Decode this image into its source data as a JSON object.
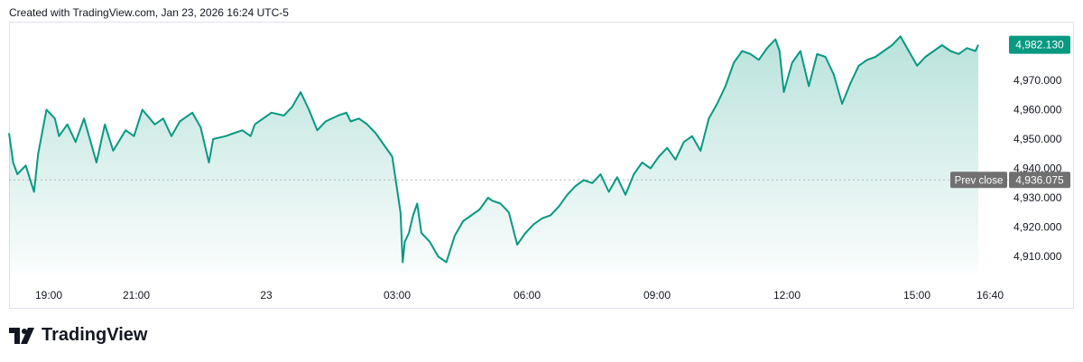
{
  "header": {
    "credit": "Created with TradingView.com, Jan 23, 2026 16:24 UTC-5"
  },
  "brand": {
    "name": "TradingView"
  },
  "chart_data": {
    "type": "area",
    "x_ticks": [
      "19:00",
      "21:00",
      "23",
      "03:00",
      "06:00",
      "09:00",
      "12:00",
      "15:00",
      "16:40"
    ],
    "y_ticks": [
      "4,970.000",
      "4,960.000",
      "4,950.000",
      "4,940.000",
      "4,930.000",
      "4,920.000",
      "4,910.000"
    ],
    "ylim": [
      4903,
      4987
    ],
    "prev_close": {
      "label": "Prev close",
      "value": 4936.075,
      "value_text": "4,936.075"
    },
    "last_price": {
      "value": 4982.13,
      "value_text": "4,982.130"
    },
    "colors": {
      "line": "#089981",
      "fill": "#089981",
      "prev_close_badge": "#707070",
      "last_badge": "#089981",
      "prev_close_line": "#b2b5be"
    },
    "series": [
      {
        "x": [
          17.4,
          17.5,
          17.6,
          17.8,
          18.0,
          18.1,
          18.3,
          18.5,
          18.6,
          18.8,
          19.0,
          19.2,
          19.5,
          19.7,
          19.9,
          20.2,
          20.4,
          20.6,
          20.9,
          21.1,
          21.3,
          21.5,
          21.8,
          22.0,
          22.2,
          22.3,
          22.6,
          22.8,
          23.0,
          23.2,
          23.3,
          23.5,
          23.7,
          24.0,
          24.2,
          24.4,
          24.6,
          24.8,
          25.0,
          25.3,
          25.5,
          25.6,
          25.8,
          26.0,
          26.2,
          26.4,
          26.6,
          26.8,
          26.85,
          26.9,
          27.0,
          27.1,
          27.2,
          27.3,
          27.5,
          27.7,
          27.9,
          28.1,
          28.3,
          28.5,
          28.7,
          28.9,
          29.0,
          29.2,
          29.4,
          29.6,
          29.8,
          30.0,
          30.2,
          30.4,
          30.6,
          30.8,
          31.0,
          31.2,
          31.4,
          31.6,
          31.8,
          32.0,
          32.2,
          32.4,
          32.6,
          32.8,
          33.0,
          33.2,
          33.4,
          33.6,
          33.8,
          34.0,
          34.2,
          34.4,
          34.6,
          34.8,
          35.0,
          35.2,
          35.4,
          35.6,
          35.8,
          35.9,
          36.0,
          36.2,
          36.4,
          36.6,
          36.8,
          37.0,
          37.2,
          37.4,
          37.6,
          37.8,
          38.0,
          38.2,
          38.4,
          38.6,
          38.8,
          39.0,
          39.2,
          39.4,
          39.6,
          39.8,
          40.0,
          40.2,
          40.4,
          40.6,
          40.67
        ],
        "y": [
          4952,
          4942,
          4938,
          4941,
          4932,
          4945,
          4960,
          4957,
          4951,
          4955,
          4949,
          4957,
          4942,
          4955,
          4946,
          4953,
          4951,
          4960,
          4955,
          4957,
          4951,
          4956,
          4959,
          4954,
          4942,
          4950,
          4951,
          4952,
          4953,
          4951,
          4955,
          4957,
          4959,
          4958,
          4961,
          4966,
          4960,
          4953,
          4956,
          4958,
          4959,
          4956,
          4957,
          4955,
          4952,
          4948,
          4944,
          4925,
          4908,
          4915,
          4918,
          4924,
          4928,
          4918,
          4915,
          4910,
          4908,
          4917,
          4922,
          4924,
          4926,
          4930,
          4929,
          4928,
          4925,
          4914,
          4918,
          4921,
          4923,
          4924,
          4927,
          4931,
          4934,
          4936,
          4935,
          4938,
          4932,
          4937,
          4931,
          4938,
          4942,
          4940,
          4944,
          4947,
          4943,
          4949,
          4951,
          4946,
          4957,
          4962,
          4968,
          4976,
          4980,
          4979,
          4977,
          4981,
          4984,
          4980,
          4966,
          4976,
          4980,
          4968,
          4979,
          4978,
          4972,
          4962,
          4969,
          4975,
          4977,
          4978,
          4980,
          4982,
          4985,
          4980,
          4975,
          4978,
          4980,
          4982,
          4980,
          4979,
          4981,
          4980,
          4982.13
        ]
      }
    ]
  }
}
